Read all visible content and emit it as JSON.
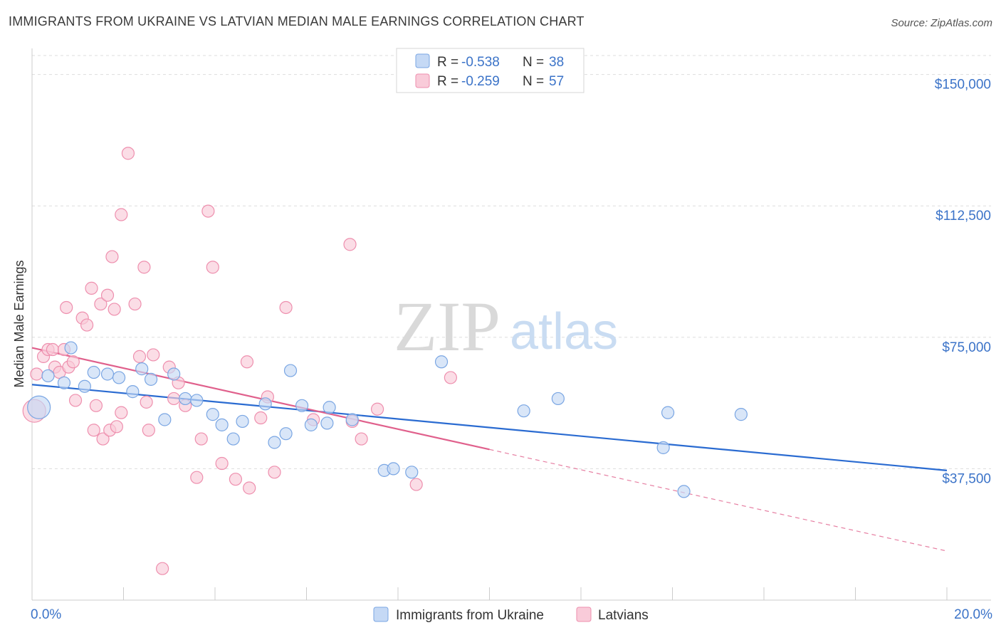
{
  "header": {
    "title": "IMMIGRANTS FROM UKRAINE VS LATVIAN MEDIAN MALE EARNINGS CORRELATION CHART",
    "source": "Source: ZipAtlas.com"
  },
  "watermark": {
    "zip": "ZIP",
    "atlas": "atlas"
  },
  "colors": {
    "blue_fill": "#c5d9f5",
    "blue_stroke": "#7aa6e3",
    "blue_line": "#2a6bd1",
    "pink_fill": "#f9cbd9",
    "pink_stroke": "#ee8fae",
    "pink_line": "#e0608c",
    "grid": "#dddddd",
    "label": "#3b73c8"
  },
  "legend_top": {
    "rows": [
      {
        "series": "Immigrants from Ukraine",
        "r_label": "R =",
        "r_value": "-0.538",
        "n_label": "N =",
        "n_value": "38"
      },
      {
        "series": "Latvians",
        "r_label": "R =",
        "r_value": "-0.259",
        "n_label": "N =",
        "n_value": "57"
      }
    ]
  },
  "legend_bottom": {
    "items": [
      "Immigrants from Ukraine",
      "Latvians"
    ]
  },
  "chart_data": {
    "type": "scatter",
    "title": "IMMIGRANTS FROM UKRAINE VS LATVIAN MEDIAN MALE EARNINGS CORRELATION CHART",
    "xlabel": "",
    "ylabel": "Median Male Earnings",
    "xlim": [
      0,
      20
    ],
    "ylim": [
      0,
      155000
    ],
    "x_tick_labels": [
      "0.0%",
      "20.0%"
    ],
    "y_ticks": [
      37500,
      75000,
      112500,
      150000
    ],
    "y_tick_labels": [
      "$37,500",
      "$75,000",
      "$112,500",
      "$150,000"
    ],
    "grid": true,
    "series": [
      {
        "name": "Immigrants from Ukraine",
        "r": -0.538,
        "n": 38,
        "points": [
          [
            0.15,
            55000
          ],
          [
            0.35,
            64000
          ],
          [
            0.7,
            62000
          ],
          [
            0.85,
            72000
          ],
          [
            1.15,
            61000
          ],
          [
            1.35,
            65000
          ],
          [
            1.65,
            64500
          ],
          [
            1.9,
            63500
          ],
          [
            2.2,
            59500
          ],
          [
            2.4,
            66000
          ],
          [
            2.6,
            63000
          ],
          [
            2.9,
            51500
          ],
          [
            3.1,
            64500
          ],
          [
            3.35,
            57500
          ],
          [
            3.6,
            57000
          ],
          [
            3.95,
            53000
          ],
          [
            4.15,
            50000
          ],
          [
            4.4,
            46000
          ],
          [
            4.6,
            51000
          ],
          [
            5.1,
            56000
          ],
          [
            5.3,
            45000
          ],
          [
            5.55,
            47500
          ],
          [
            5.65,
            65500
          ],
          [
            5.9,
            55500
          ],
          [
            6.1,
            50000
          ],
          [
            6.45,
            50500
          ],
          [
            6.5,
            55000
          ],
          [
            7.0,
            51500
          ],
          [
            7.7,
            37000
          ],
          [
            7.9,
            37500
          ],
          [
            8.3,
            36500
          ],
          [
            8.95,
            68000
          ],
          [
            10.75,
            54000
          ],
          [
            11.5,
            57500
          ],
          [
            13.8,
            43500
          ],
          [
            13.9,
            53500
          ],
          [
            14.25,
            31000
          ],
          [
            15.5,
            53000
          ]
        ],
        "trend": {
          "x": [
            0,
            20
          ],
          "y": [
            61500,
            37000
          ],
          "style": "solid"
        }
      },
      {
        "name": "Latvians",
        "r": -0.259,
        "n": 57,
        "points": [
          [
            0.05,
            54000
          ],
          [
            0.1,
            64500
          ],
          [
            0.25,
            69500
          ],
          [
            0.35,
            71500
          ],
          [
            0.45,
            71500
          ],
          [
            0.5,
            66500
          ],
          [
            0.6,
            65000
          ],
          [
            0.7,
            71500
          ],
          [
            0.75,
            83500
          ],
          [
            0.8,
            66500
          ],
          [
            0.9,
            68000
          ],
          [
            0.95,
            57000
          ],
          [
            1.1,
            80500
          ],
          [
            1.2,
            78500
          ],
          [
            1.3,
            89000
          ],
          [
            1.35,
            48500
          ],
          [
            1.4,
            55500
          ],
          [
            1.5,
            84500
          ],
          [
            1.55,
            46000
          ],
          [
            1.65,
            87000
          ],
          [
            1.7,
            48500
          ],
          [
            1.75,
            98000
          ],
          [
            1.8,
            83000
          ],
          [
            1.85,
            49500
          ],
          [
            1.95,
            110000
          ],
          [
            1.95,
            53500
          ],
          [
            2.1,
            127500
          ],
          [
            2.25,
            84500
          ],
          [
            2.35,
            69500
          ],
          [
            2.45,
            95000
          ],
          [
            2.5,
            56500
          ],
          [
            2.55,
            48500
          ],
          [
            2.65,
            70000
          ],
          [
            2.85,
            9000
          ],
          [
            3.0,
            66500
          ],
          [
            3.1,
            57500
          ],
          [
            3.2,
            62000
          ],
          [
            3.35,
            55500
          ],
          [
            3.6,
            35000
          ],
          [
            3.7,
            46000
          ],
          [
            3.85,
            111000
          ],
          [
            3.95,
            95000
          ],
          [
            4.15,
            39000
          ],
          [
            4.45,
            34500
          ],
          [
            4.7,
            68000
          ],
          [
            4.75,
            32000
          ],
          [
            5.0,
            52000
          ],
          [
            5.15,
            58000
          ],
          [
            5.3,
            36500
          ],
          [
            5.55,
            83500
          ],
          [
            6.15,
            51500
          ],
          [
            6.95,
            101500
          ],
          [
            7.0,
            51000
          ],
          [
            7.2,
            46000
          ],
          [
            7.55,
            54500
          ],
          [
            8.4,
            33000
          ],
          [
            9.15,
            63500
          ]
        ],
        "trend": {
          "x": [
            0,
            10
          ],
          "y": [
            72000,
            43000
          ],
          "style": "solid"
        },
        "trend_extension": {
          "x": [
            10,
            20
          ],
          "y": [
            43000,
            14000
          ],
          "style": "dashed"
        }
      }
    ]
  }
}
